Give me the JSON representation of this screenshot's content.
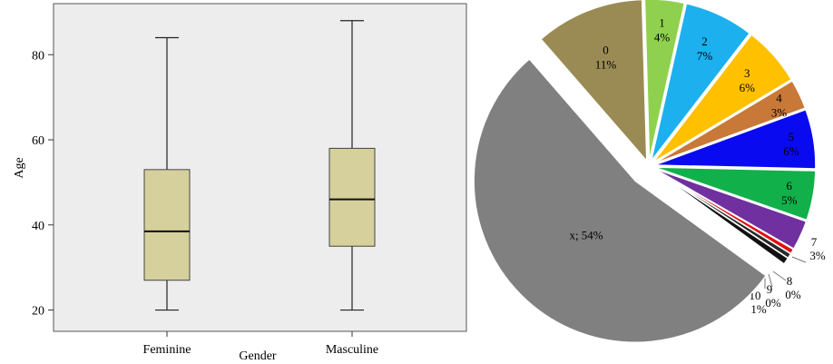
{
  "chart_data": [
    {
      "type": "boxplot",
      "xlabel": "Gender",
      "ylabel": "Age",
      "ylim": [
        15,
        92
      ],
      "yticks": [
        20,
        40,
        60,
        80
      ],
      "grid": false,
      "categories": [
        "Feminine",
        "Masculine"
      ],
      "boxes": [
        {
          "category": "Feminine",
          "min": 20,
          "q1": 27,
          "median": 38.5,
          "q3": 53,
          "max": 84
        },
        {
          "category": "Masculine",
          "min": 20,
          "q1": 35,
          "median": 46,
          "q3": 58,
          "max": 88
        }
      ],
      "colors": {
        "box_fill": "#d6d09c",
        "plot_bg": "#ededed"
      }
    },
    {
      "type": "pie",
      "exploded": true,
      "slices": [
        {
          "label": "0",
          "percent_label": "11%",
          "value": 11,
          "color": "#9a8b55"
        },
        {
          "label": "1",
          "percent_label": "4%",
          "value": 4,
          "color": "#8fd14f"
        },
        {
          "label": "2",
          "percent_label": "7%",
          "value": 7,
          "color": "#1cb0ef"
        },
        {
          "label": "3",
          "percent_label": "6%",
          "value": 6,
          "color": "#ffc000"
        },
        {
          "label": "4",
          "percent_label": "3%",
          "value": 3,
          "color": "#c87837"
        },
        {
          "label": "5",
          "percent_label": "6%",
          "value": 6,
          "color": "#0a0af0"
        },
        {
          "label": "6",
          "percent_label": "5%",
          "value": 5,
          "color": "#12b04a"
        },
        {
          "label": "7",
          "percent_label": "3%",
          "value": 3,
          "color": "#7030a0"
        },
        {
          "label": "8",
          "percent_label": "0%",
          "value": 0.5,
          "color": "#e01010"
        },
        {
          "label": "9",
          "percent_label": "0%",
          "value": 0.5,
          "color": "#2a2a2a"
        },
        {
          "label": "10",
          "percent_label": "1%",
          "value": 0.7,
          "color": "#111111"
        },
        {
          "label": "x; 54%",
          "percent_label": "",
          "value": 54,
          "color": "#808080"
        }
      ]
    }
  ]
}
